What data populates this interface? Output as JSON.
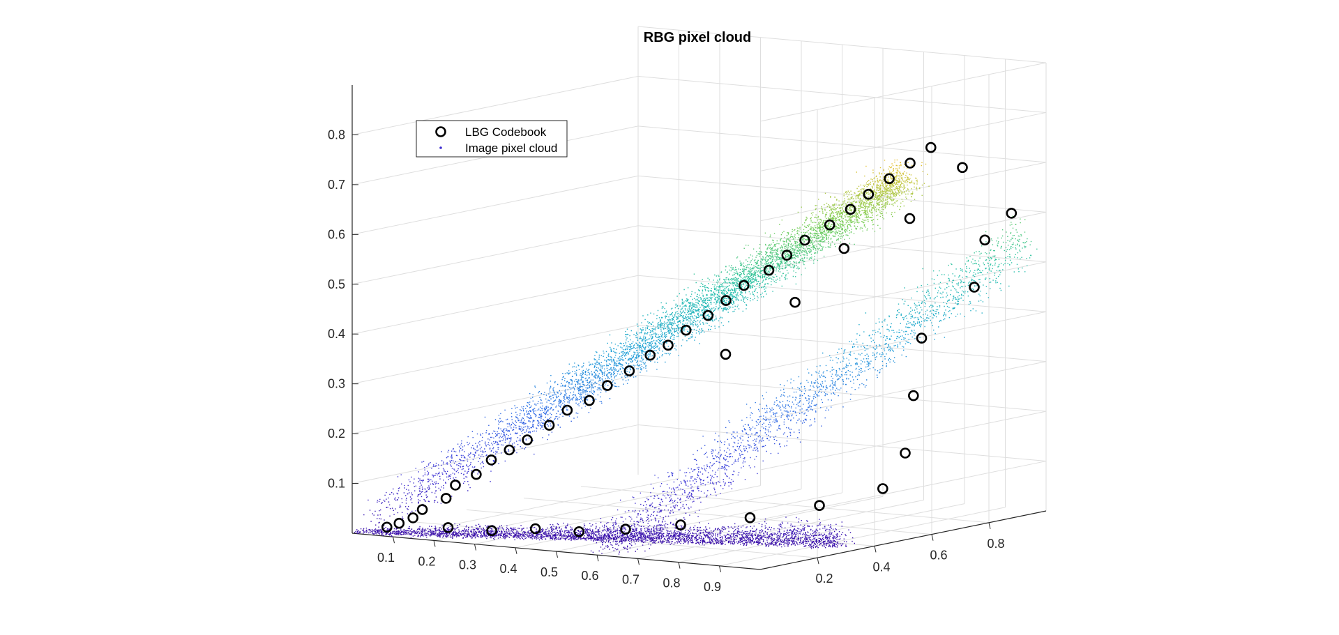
{
  "chart_data": {
    "type": "scatter",
    "title": "RBG pixel cloud",
    "xlabel": "",
    "ylabel": "",
    "zlabel": "",
    "xlim": [
      0,
      1
    ],
    "ylim": [
      0,
      1
    ],
    "zlim": [
      0,
      0.9
    ],
    "x_ticks": [
      "0.1",
      "0.2",
      "0.3",
      "0.4",
      "0.5",
      "0.6",
      "0.7",
      "0.8",
      "0.9"
    ],
    "y_ticks": [
      "0.2",
      "0.4",
      "0.6",
      "0.8"
    ],
    "z_ticks": [
      "0.1",
      "0.2",
      "0.3",
      "0.4",
      "0.5",
      "0.6",
      "0.7",
      "0.8"
    ],
    "grid": true,
    "legend_position": "top-left",
    "colormap": [
      "#3b0fa8",
      "#3c33d6",
      "#2f6fe6",
      "#1fa3d6",
      "#26c1a8",
      "#79cf5a",
      "#e8c235"
    ],
    "codebook_color": "#000000",
    "series": [
      {
        "name": "LBG Codebook",
        "marker": "circle-open",
        "color": "#000000",
        "note": ""
      },
      {
        "name": "Image pixel cloud",
        "marker": "point",
        "color": "#3f2fd0",
        "note": ""
      }
    ],
    "codebook": [
      [
        0.05,
        0.05,
        0.01
      ],
      [
        0.08,
        0.05,
        0.02
      ],
      [
        0.1,
        0.07,
        0.03
      ],
      [
        0.13,
        0.06,
        0.05
      ],
      [
        0.16,
        0.1,
        0.07
      ],
      [
        0.19,
        0.09,
        0.1
      ],
      [
        0.22,
        0.12,
        0.12
      ],
      [
        0.25,
        0.13,
        0.15
      ],
      [
        0.28,
        0.15,
        0.17
      ],
      [
        0.31,
        0.17,
        0.19
      ],
      [
        0.35,
        0.19,
        0.22
      ],
      [
        0.38,
        0.21,
        0.25
      ],
      [
        0.42,
        0.23,
        0.27
      ],
      [
        0.45,
        0.25,
        0.3
      ],
      [
        0.49,
        0.27,
        0.33
      ],
      [
        0.52,
        0.3,
        0.36
      ],
      [
        0.55,
        0.32,
        0.38
      ],
      [
        0.58,
        0.34,
        0.41
      ],
      [
        0.62,
        0.36,
        0.44
      ],
      [
        0.65,
        0.38,
        0.47
      ],
      [
        0.68,
        0.4,
        0.5
      ],
      [
        0.72,
        0.43,
        0.53
      ],
      [
        0.75,
        0.45,
        0.56
      ],
      [
        0.78,
        0.47,
        0.59
      ],
      [
        0.82,
        0.5,
        0.62
      ],
      [
        0.85,
        0.53,
        0.65
      ],
      [
        0.88,
        0.55,
        0.68
      ],
      [
        0.91,
        0.58,
        0.71
      ],
      [
        0.94,
        0.61,
        0.74
      ],
      [
        0.97,
        0.64,
        0.77
      ],
      [
        0.2,
        0.05,
        0.02
      ],
      [
        0.3,
        0.06,
        0.02
      ],
      [
        0.4,
        0.07,
        0.03
      ],
      [
        0.5,
        0.08,
        0.03
      ],
      [
        0.6,
        0.1,
        0.04
      ],
      [
        0.7,
        0.15,
        0.05
      ],
      [
        0.8,
        0.25,
        0.06
      ],
      [
        0.9,
        0.35,
        0.08
      ],
      [
        0.95,
        0.5,
        0.1
      ],
      [
        0.9,
        0.65,
        0.15
      ],
      [
        0.85,
        0.75,
        0.25
      ],
      [
        0.8,
        0.85,
        0.35
      ],
      [
        0.88,
        0.92,
        0.45
      ],
      [
        0.92,
        0.9,
        0.55
      ],
      [
        0.95,
        0.95,
        0.6
      ],
      [
        0.6,
        0.45,
        0.35
      ],
      [
        0.7,
        0.55,
        0.45
      ],
      [
        0.75,
        0.65,
        0.55
      ],
      [
        0.82,
        0.78,
        0.6
      ],
      [
        0.9,
        0.85,
        0.7
      ]
    ]
  }
}
